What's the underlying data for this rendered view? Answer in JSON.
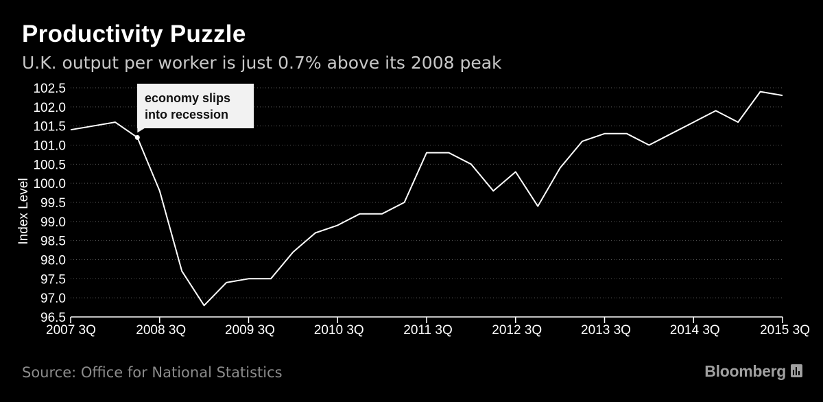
{
  "title": "Productivity Puzzle",
  "subtitle": "U.K. output per worker is just 0.7% above its 2008 peak",
  "source": "Source: Office for National Statistics",
  "brand": "Bloomberg",
  "annotation": {
    "line1": "economy slips",
    "line2": "into recession"
  },
  "colors": {
    "background": "#000000",
    "line": "#ffffff",
    "grid": "#5a5a5a",
    "annotation_bg": "#f2f2f2"
  },
  "chart_data": {
    "type": "line",
    "title": "Productivity Puzzle",
    "ylabel": "Index Level",
    "xlabel": "",
    "ylim": [
      96.5,
      102.5
    ],
    "y_ticks": [
      "96.5",
      "97.0",
      "97.5",
      "98.0",
      "98.5",
      "99.0",
      "99.5",
      "100.0",
      "100.5",
      "101.0",
      "101.5",
      "102.0",
      "102.5"
    ],
    "x_tick_labels": [
      "2007 3Q",
      "2008 3Q",
      "2009 3Q",
      "2010 3Q",
      "2011 3Q",
      "2012 3Q",
      "2013 3Q",
      "2014 3Q",
      "2015 3Q"
    ],
    "x_ticks_quarter_index": [
      0,
      4,
      8,
      12,
      16,
      20,
      24,
      28,
      32
    ],
    "series": [
      {
        "name": "U.K. output per worker",
        "values": [
          101.4,
          101.5,
          101.6,
          101.2,
          99.8,
          97.7,
          96.8,
          97.4,
          97.5,
          97.5,
          98.2,
          98.7,
          98.9,
          99.2,
          99.2,
          99.5,
          100.8,
          100.8,
          100.5,
          99.8,
          100.3,
          99.4,
          100.4,
          101.1,
          101.3,
          101.3,
          101.0,
          101.3,
          101.6,
          101.9,
          101.6,
          102.4,
          102.3
        ]
      }
    ],
    "annotation_point_index": 3
  }
}
